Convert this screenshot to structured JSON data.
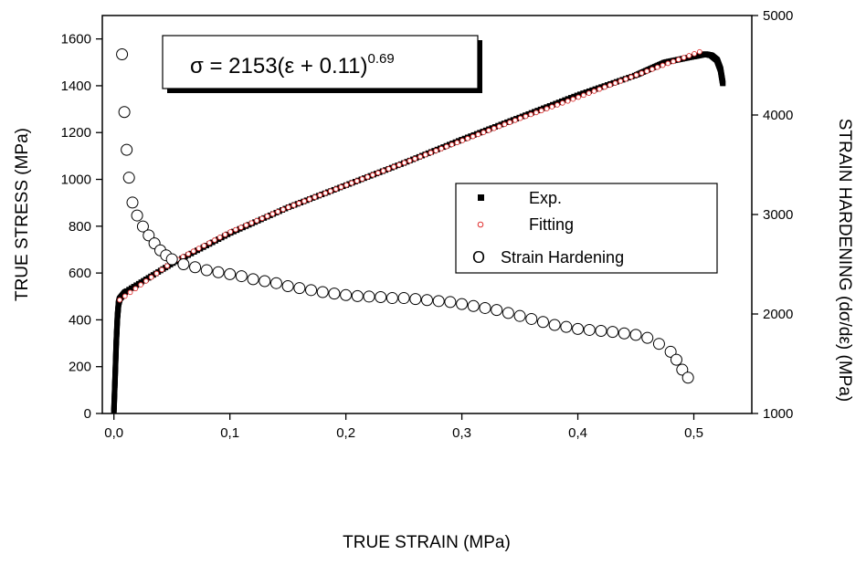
{
  "chart_data": {
    "type": "scatter",
    "title": "",
    "equation": {
      "prefix": "σ = 2153(ε + 0.11)",
      "exponent": "0.69"
    },
    "xlabel": "TRUE STRAIN (MPa)",
    "ylabel": "TRUE STRESS (MPa)",
    "y2label": "STRAIN HARDENING (dσ/dε) (MPa)",
    "xlim": [
      -0.01,
      0.55
    ],
    "ylim": [
      0,
      1700
    ],
    "y2lim": [
      1000,
      5000
    ],
    "xticks": [
      0.0,
      0.1,
      0.2,
      0.3,
      0.4,
      0.5
    ],
    "xtick_labels": [
      "0,0",
      "0,1",
      "0,2",
      "0,3",
      "0,4",
      "0,5"
    ],
    "yticks": [
      0,
      200,
      400,
      600,
      800,
      1000,
      1200,
      1400,
      1600
    ],
    "ytick_labels": [
      "0",
      "200",
      "400",
      "600",
      "800",
      "1000",
      "1200",
      "1400",
      "1600"
    ],
    "y2ticks": [
      1000,
      2000,
      3000,
      4000,
      5000
    ],
    "y2tick_labels": [
      "1000",
      "2000",
      "3000",
      "4000",
      "5000"
    ],
    "grid": false,
    "legend_position": "right",
    "legend": [
      {
        "marker": "■",
        "label": "Exp."
      },
      {
        "marker": "○",
        "label": "Fitting",
        "color": "#e03030"
      },
      {
        "marker": "O",
        "label": "Strain Hardening"
      }
    ],
    "series": [
      {
        "name": "Exp.",
        "axis": "left",
        "marker": "filled-square",
        "color": "#000000",
        "x": [
          0.0,
          0.001,
          0.002,
          0.003,
          0.004,
          0.005,
          0.01,
          0.05,
          0.1,
          0.15,
          0.2,
          0.25,
          0.3,
          0.35,
          0.4,
          0.45,
          0.475,
          0.5,
          0.51,
          0.515,
          0.52,
          0.523,
          0.525
        ],
        "y": [
          10,
          150,
          300,
          410,
          470,
          490,
          520,
          640,
          770,
          880,
          975,
          1070,
          1170,
          1265,
          1360,
          1445,
          1500,
          1525,
          1535,
          1530,
          1510,
          1470,
          1410
        ]
      },
      {
        "name": "Fitting",
        "axis": "left",
        "marker": "open-circle",
        "color": "#e03030",
        "x": [
          0.005,
          0.05,
          0.1,
          0.15,
          0.2,
          0.25,
          0.3,
          0.35,
          0.4,
          0.45,
          0.505
        ],
        "y": [
          485,
          645,
          775,
          880,
          975,
          1070,
          1165,
          1260,
          1350,
          1445,
          1545
        ]
      },
      {
        "name": "Strain Hardening",
        "axis": "right",
        "marker": "open-circle",
        "color": "#000000",
        "x": [
          0.007,
          0.009,
          0.011,
          0.013,
          0.016,
          0.02,
          0.025,
          0.03,
          0.035,
          0.04,
          0.045,
          0.05,
          0.06,
          0.07,
          0.08,
          0.09,
          0.1,
          0.11,
          0.12,
          0.13,
          0.14,
          0.15,
          0.16,
          0.17,
          0.18,
          0.19,
          0.2,
          0.21,
          0.22,
          0.23,
          0.24,
          0.25,
          0.26,
          0.27,
          0.28,
          0.29,
          0.3,
          0.31,
          0.32,
          0.33,
          0.34,
          0.35,
          0.36,
          0.37,
          0.38,
          0.39,
          0.4,
          0.41,
          0.42,
          0.43,
          0.44,
          0.45,
          0.46,
          0.47,
          0.48,
          0.485,
          0.49,
          0.495
        ],
        "y": [
          4610,
          4030,
          3650,
          3370,
          3120,
          2990,
          2880,
          2790,
          2710,
          2640,
          2590,
          2550,
          2500,
          2470,
          2440,
          2420,
          2400,
          2380,
          2350,
          2330,
          2310,
          2280,
          2260,
          2240,
          2220,
          2205,
          2190,
          2180,
          2175,
          2170,
          2160,
          2160,
          2150,
          2140,
          2130,
          2120,
          2100,
          2080,
          2060,
          2040,
          2010,
          1980,
          1950,
          1920,
          1890,
          1870,
          1850,
          1840,
          1830,
          1820,
          1805,
          1790,
          1760,
          1700,
          1620,
          1540,
          1440,
          1360
        ]
      }
    ]
  }
}
